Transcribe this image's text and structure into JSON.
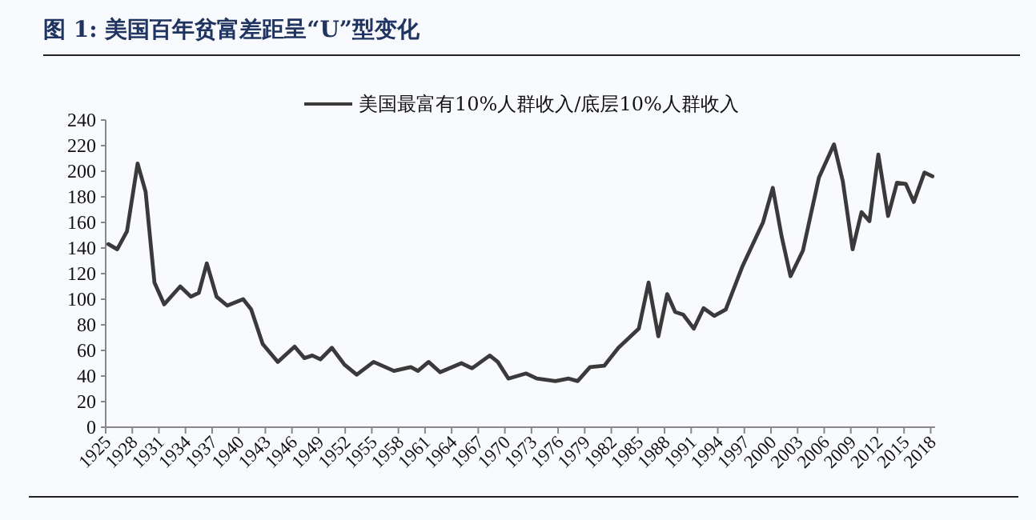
{
  "chart_data": {
    "type": "line",
    "title": "图 1:  美国百年贫富差距呈“U”型变化",
    "x": [
      1925.3,
      1926.3,
      1927.4,
      1928.6,
      1929.5,
      1930.5,
      1931.6,
      1933.4,
      1934.6,
      1935.5,
      1936.4,
      1937.5,
      1938.7,
      1940.5,
      1941.4,
      1942.7,
      1944.4,
      1946.3,
      1947.4,
      1948.3,
      1949.2,
      1950.5,
      1951.9,
      1953.3,
      1955.2,
      1957.5,
      1959.4,
      1960.2,
      1961.4,
      1962.7,
      1965.1,
      1966.3,
      1968.3,
      1969.2,
      1970.4,
      1972.4,
      1973.6,
      1975.7,
      1977.2,
      1978.2,
      1979.6,
      1981.2,
      1982.8,
      1985.1,
      1986.2,
      1987.3,
      1988.3,
      1989.2,
      1990.1,
      1991.3,
      1992.4,
      1993.6,
      1994.9,
      1996.8,
      1999.1,
      2000.2,
      2001.2,
      2002.2,
      2003.6,
      2005.4,
      2007.1,
      2008.1,
      2009.2,
      2010.2,
      2011.1,
      2012.1,
      2013.2,
      2014.2,
      2015.2,
      2016.1,
      2017.3,
      2018.2
    ],
    "series": [
      {
        "name": "美国最富有10%人群收入/底层10%人群收入",
        "color": "#3a3a3a",
        "values": [
          143,
          139,
          153,
          206,
          184,
          113,
          96,
          110,
          102,
          105,
          128,
          102,
          95,
          100,
          92,
          65,
          51,
          63,
          54,
          56,
          53,
          62,
          49,
          41,
          51,
          44,
          47,
          44,
          51,
          43,
          50,
          46,
          56,
          51,
          38,
          42,
          38,
          36,
          38,
          36,
          47,
          48,
          62,
          77,
          113,
          71,
          104,
          90,
          88,
          77,
          93,
          87,
          92,
          126,
          160,
          187,
          149,
          118,
          138,
          195,
          221,
          192,
          139,
          168,
          161,
          213,
          165,
          191,
          190,
          176,
          199,
          196
        ]
      }
    ],
    "xlim": [
      1925,
      2018.5
    ],
    "ylim": [
      0,
      240
    ],
    "xticks": [
      1925,
      1928,
      1931,
      1934,
      1937,
      1940,
      1943,
      1946,
      1949,
      1952,
      1955,
      1958,
      1961,
      1964,
      1967,
      1970,
      1973,
      1976,
      1979,
      1982,
      1985,
      1988,
      1991,
      1994,
      1997,
      2000,
      2003,
      2006,
      2009,
      2012,
      2015,
      2018
    ],
    "yticks": [
      0,
      20,
      40,
      60,
      80,
      100,
      120,
      140,
      160,
      180,
      200,
      220,
      240
    ],
    "legend": "top",
    "grid": false
  }
}
